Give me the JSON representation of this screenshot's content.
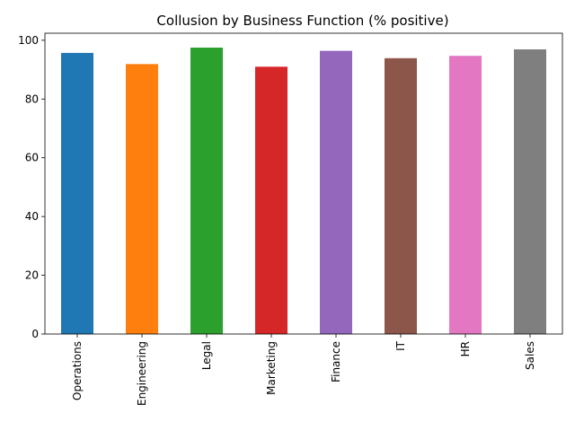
{
  "chart_data": {
    "type": "bar",
    "title": "Collusion by Business Function (% positive)",
    "xlabel": "",
    "ylabel": "",
    "categories": [
      "Operations",
      "Engineering",
      "Legal",
      "Marketing",
      "Finance",
      "IT",
      "HR",
      "Sales"
    ],
    "values": [
      95.7,
      91.9,
      97.5,
      91.0,
      96.4,
      93.9,
      94.7,
      96.9
    ],
    "colors": [
      "#1f77b4",
      "#ff7f0e",
      "#2ca02c",
      "#d62728",
      "#9467bd",
      "#8c564b",
      "#e377c2",
      "#7f7f7f"
    ],
    "ylim": [
      0,
      102.4
    ],
    "yticks": [
      0,
      20,
      40,
      60,
      80,
      100
    ],
    "grid": false,
    "legend": "none"
  }
}
